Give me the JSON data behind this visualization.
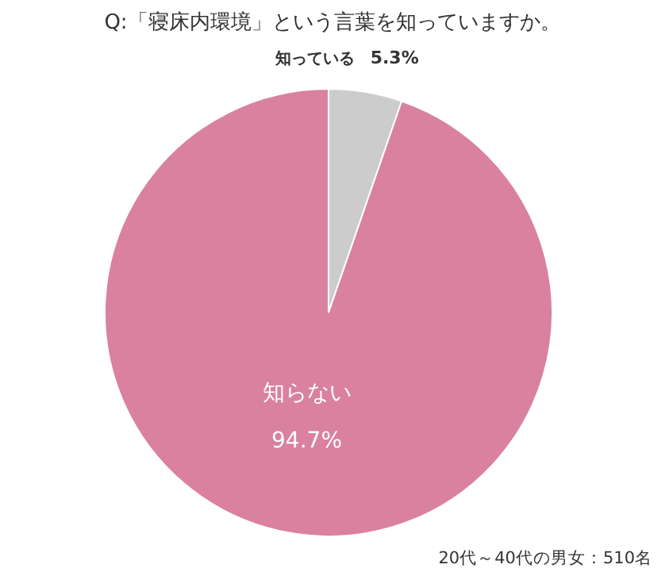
{
  "chart_data": {
    "type": "pie",
    "title": "Q:「寝床内環境」という言葉を知っていますか。",
    "categories": [
      "知っている",
      "知らない"
    ],
    "values": [
      5.3,
      94.7
    ],
    "colors": [
      "#cccccc",
      "#d9819f"
    ],
    "value_labels": [
      "5.3%",
      "94.7%"
    ],
    "annotations": [
      "20代～40代の男女：510名"
    ]
  }
}
